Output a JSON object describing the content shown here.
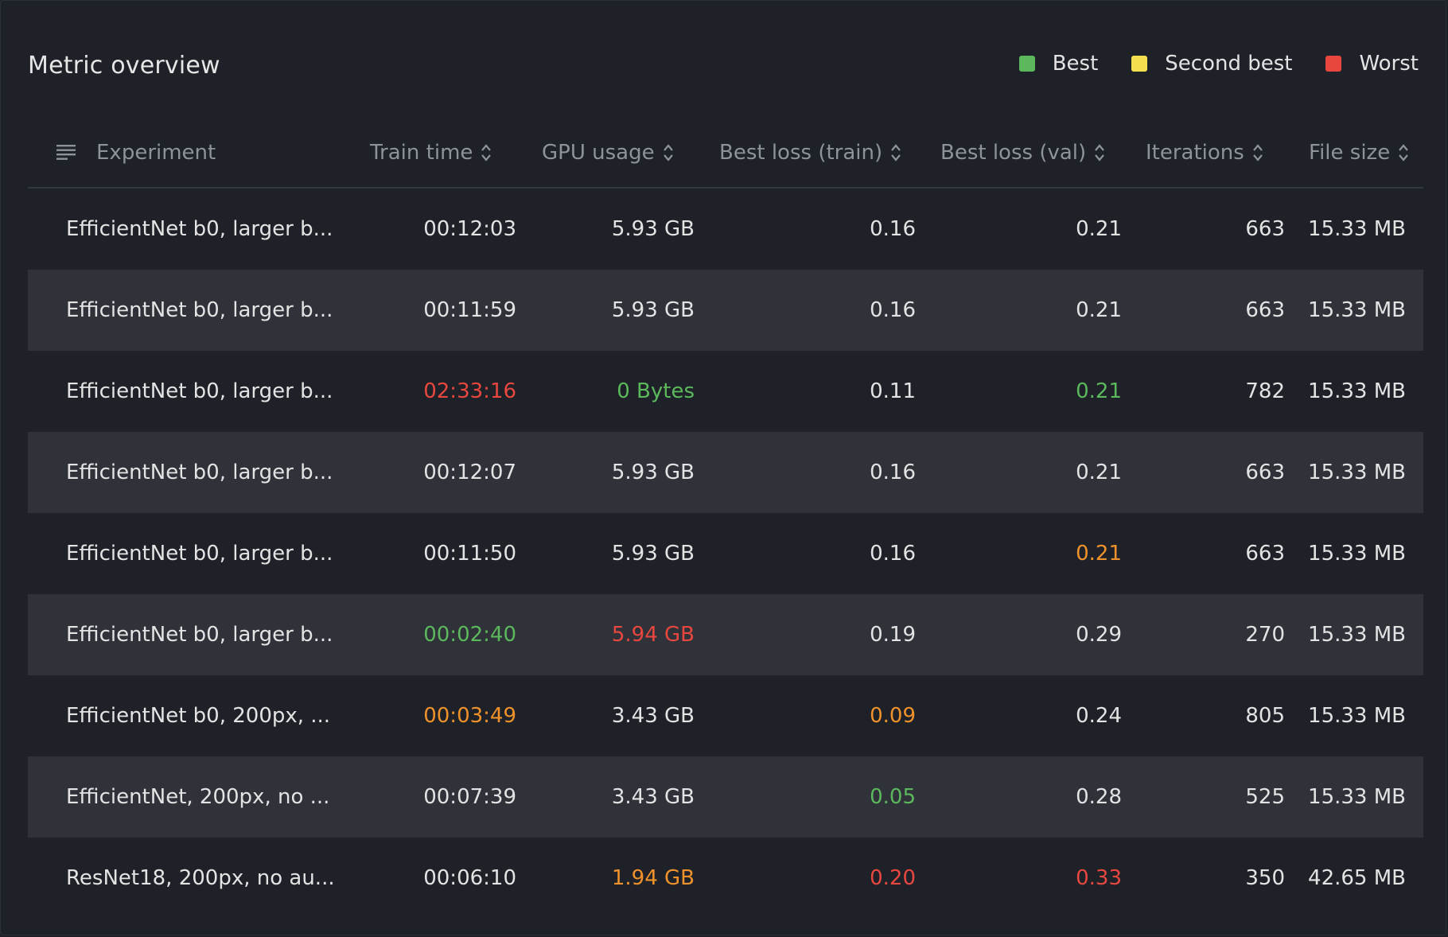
{
  "panel": {
    "title": "Metric overview"
  },
  "legend": [
    {
      "label": "Best",
      "color": "#5cb85c"
    },
    {
      "label": "Second best",
      "color": "#f5e050"
    },
    {
      "label": "Worst",
      "color": "#e8473f"
    }
  ],
  "colors": {
    "best": "#5cb85c",
    "second": "#f0922b",
    "worst": "#e8473f",
    "default": "#e3e3e3"
  },
  "columns": {
    "experiment": "Experiment",
    "train_time": "Train time",
    "gpu_usage": "GPU usage",
    "best_loss_train": "Best loss (train)",
    "best_loss_val": "Best loss (val)",
    "iterations": "Iterations",
    "file_size": "File size"
  },
  "rows": [
    {
      "dot": "#8a5cc8",
      "experiment": "EfficientNet b0, larger b...",
      "train_time": "00:12:03",
      "gpu_usage": "5.93 GB",
      "best_loss_train": "0.16",
      "best_loss_val": "0.21",
      "iterations": "663",
      "file_size": "15.33 MB",
      "hl": {}
    },
    {
      "dot": "#f4e86a",
      "experiment": "EfficientNet b0, larger b...",
      "train_time": "00:11:59",
      "gpu_usage": "5.93 GB",
      "best_loss_train": "0.16",
      "best_loss_val": "0.21",
      "iterations": "663",
      "file_size": "15.33 MB",
      "hl": {}
    },
    {
      "dot": "#f0822b",
      "experiment": "EfficientNet b0, larger b...",
      "train_time": "02:33:16",
      "gpu_usage": "0 Bytes",
      "best_loss_train": "0.11",
      "best_loss_val": "0.21",
      "iterations": "782",
      "file_size": "15.33 MB",
      "hl": {
        "train_time": "worst",
        "gpu_usage": "best",
        "best_loss_val": "best"
      }
    },
    {
      "dot": "#f5a94c",
      "experiment": "EfficientNet b0, larger b...",
      "train_time": "00:12:07",
      "gpu_usage": "5.93 GB",
      "best_loss_train": "0.16",
      "best_loss_val": "0.21",
      "iterations": "663",
      "file_size": "15.33 MB",
      "hl": {}
    },
    {
      "dot": "#c6b3e6",
      "experiment": "EfficientNet b0, larger b...",
      "train_time": "00:11:50",
      "gpu_usage": "5.93 GB",
      "best_loss_train": "0.16",
      "best_loss_val": "0.21",
      "iterations": "663",
      "file_size": "15.33 MB",
      "hl": {
        "best_loss_val": "second"
      }
    },
    {
      "dot": "#e8473f",
      "experiment": "EfficientNet b0, larger b...",
      "train_time": "00:02:40",
      "gpu_usage": "5.94 GB",
      "best_loss_train": "0.19",
      "best_loss_val": "0.29",
      "iterations": "270",
      "file_size": "15.33 MB",
      "hl": {
        "train_time": "best",
        "gpu_usage": "worst"
      }
    },
    {
      "dot": "#f59aa0",
      "experiment": "EfficientNet b0, 200px, ...",
      "train_time": "00:03:49",
      "gpu_usage": "3.43 GB",
      "best_loss_train": "0.09",
      "best_loss_val": "0.24",
      "iterations": "805",
      "file_size": "15.33 MB",
      "hl": {
        "train_time": "second",
        "best_loss_train": "second"
      }
    },
    {
      "dot": "#9bd66a",
      "experiment": "EfficientNet, 200px, no ...",
      "train_time": "00:07:39",
      "gpu_usage": "3.43 GB",
      "best_loss_train": "0.05",
      "best_loss_val": "0.28",
      "iterations": "525",
      "file_size": "15.33 MB",
      "hl": {
        "best_loss_train": "best"
      }
    },
    {
      "dot": "#3a8fd8",
      "experiment": "ResNet18, 200px, no au...",
      "train_time": "00:06:10",
      "gpu_usage": "1.94 GB",
      "best_loss_train": "0.20",
      "best_loss_val": "0.33",
      "iterations": "350",
      "file_size": "42.65 MB",
      "hl": {
        "gpu_usage": "second",
        "best_loss_train": "worst",
        "best_loss_val": "worst"
      }
    }
  ]
}
